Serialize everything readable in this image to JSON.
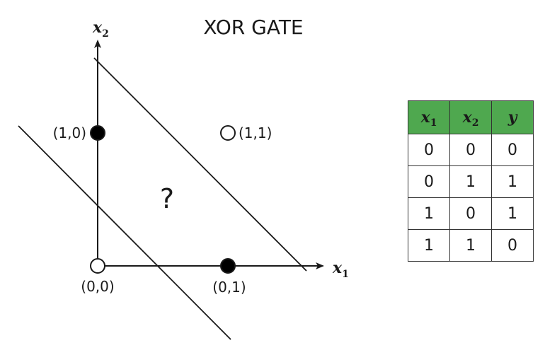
{
  "title": "XOR GATE",
  "axes": {
    "x": {
      "var": "x",
      "sub": "1"
    },
    "y": {
      "var": "x",
      "sub": "2"
    }
  },
  "question": "?",
  "points": [
    {
      "label": "(0,0)",
      "filled": false
    },
    {
      "label": "(0,1)",
      "filled": true
    },
    {
      "label": "(1,0)",
      "filled": true
    },
    {
      "label": "(1,1)",
      "filled": false
    }
  ],
  "table": {
    "headers": [
      {
        "var": "x",
        "sub": "1"
      },
      {
        "var": "x",
        "sub": "2"
      },
      {
        "var": "y",
        "sub": ""
      }
    ],
    "rows": [
      [
        "0",
        "0",
        "0"
      ],
      [
        "0",
        "1",
        "1"
      ],
      [
        "1",
        "0",
        "1"
      ],
      [
        "1",
        "1",
        "0"
      ]
    ],
    "header_color": "#4fa84f"
  },
  "colors": {
    "ink": "#1a1a1a",
    "filled_point": "#000000",
    "hollow_point": "#ffffff"
  }
}
